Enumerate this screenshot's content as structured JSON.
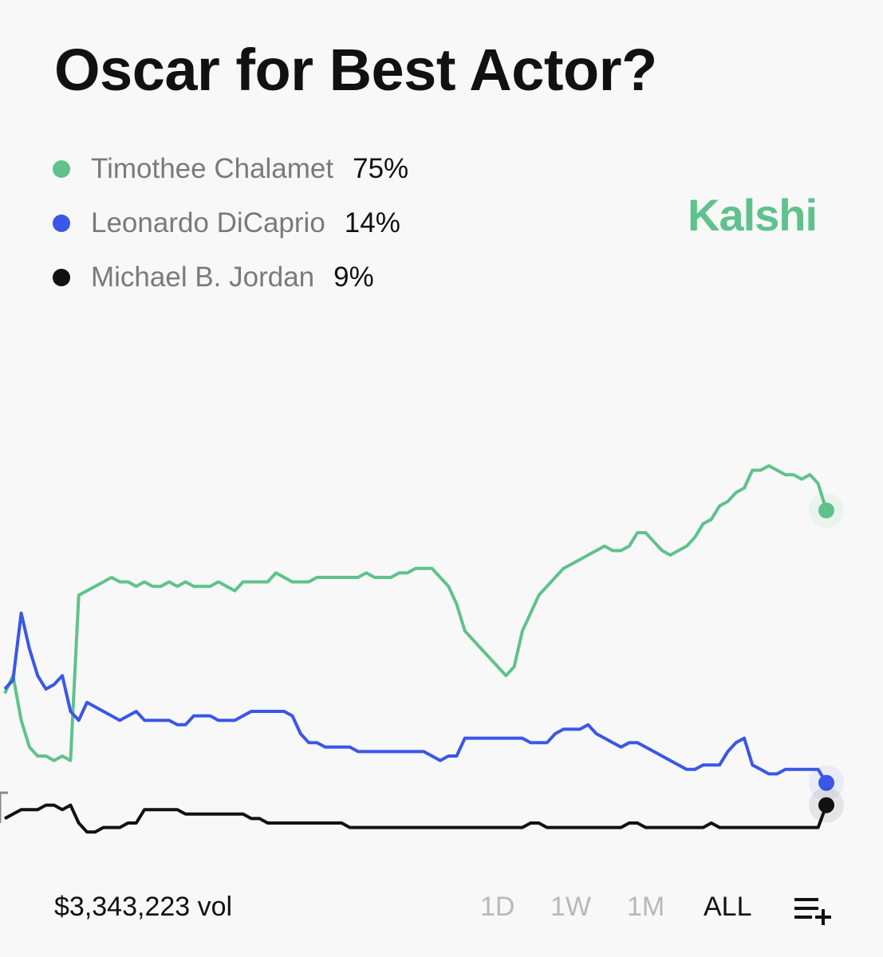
{
  "title": "Oscar for Best Actor?",
  "brand": {
    "name": "Kalshi",
    "color": "#5fc28c"
  },
  "legend": [
    {
      "name": "Timothee Chalamet",
      "pct": "75%",
      "color": "#5fc28c"
    },
    {
      "name": "Leonardo DiCaprio",
      "pct": "14%",
      "color": "#3a57e8"
    },
    {
      "name": "Michael B. Jordan",
      "pct": "9%",
      "color": "#111111"
    }
  ],
  "footer": {
    "volume": "$3,343,223 vol",
    "ranges": [
      "1D",
      "1W",
      "1M",
      "ALL"
    ],
    "active_range": "ALL",
    "filter_icon": "list-add-icon"
  },
  "chart_data": {
    "type": "line",
    "x": [
      0,
      1,
      2,
      3,
      4,
      5,
      6,
      7,
      8,
      9,
      10,
      11,
      12,
      13,
      14,
      15,
      16,
      17,
      18,
      19,
      20,
      21,
      22,
      23,
      24,
      25,
      26,
      27,
      28,
      29,
      30,
      31,
      32,
      33,
      34,
      35,
      36,
      37,
      38,
      39,
      40,
      41,
      42,
      43,
      44,
      45,
      46,
      47,
      48,
      49,
      50,
      51,
      52,
      53,
      54,
      55,
      56,
      57,
      58,
      59,
      60,
      61,
      62,
      63,
      64,
      65,
      66,
      67,
      68,
      69,
      70,
      71,
      72,
      73,
      74,
      75,
      76,
      77,
      78,
      79,
      80,
      81,
      82,
      83,
      84,
      85,
      86,
      87,
      88,
      89,
      90,
      91,
      92,
      93,
      94,
      95,
      96,
      97,
      98,
      99,
      100
    ],
    "ylim": [
      0,
      100
    ],
    "grid": false,
    "series": [
      {
        "name": "Timothee Chalamet",
        "color": "#5fc28c",
        "values": [
          34,
          38,
          28,
          22,
          20,
          20,
          19,
          20,
          19,
          56,
          57,
          58,
          59,
          60,
          59,
          59,
          58,
          59,
          58,
          58,
          59,
          58,
          59,
          58,
          58,
          58,
          59,
          58,
          57,
          59,
          59,
          59,
          59,
          61,
          60,
          59,
          59,
          59,
          60,
          60,
          60,
          60,
          60,
          60,
          61,
          60,
          60,
          60,
          61,
          61,
          62,
          62,
          62,
          60,
          58,
          54,
          48,
          46,
          44,
          42,
          40,
          38,
          40,
          48,
          52,
          56,
          58,
          60,
          62,
          63,
          64,
          65,
          66,
          67,
          66,
          66,
          67,
          70,
          70,
          68,
          66,
          65,
          66,
          67,
          69,
          72,
          73,
          76,
          77,
          79,
          80,
          84,
          84,
          85,
          84,
          83,
          83,
          82,
          83,
          81,
          75
        ]
      },
      {
        "name": "Leonardo DiCaprio",
        "color": "#3a57e8",
        "values": [
          35,
          37,
          52,
          44,
          38,
          35,
          36,
          38,
          30,
          28,
          32,
          31,
          30,
          29,
          28,
          29,
          30,
          28,
          28,
          28,
          28,
          27,
          27,
          29,
          29,
          29,
          28,
          28,
          28,
          29,
          30,
          30,
          30,
          30,
          30,
          29,
          25,
          23,
          23,
          22,
          22,
          22,
          22,
          21,
          21,
          21,
          21,
          21,
          21,
          21,
          21,
          21,
          20,
          19,
          20,
          20,
          24,
          24,
          24,
          24,
          24,
          24,
          24,
          24,
          23,
          23,
          23,
          25,
          26,
          26,
          26,
          27,
          25,
          24,
          23,
          22,
          23,
          23,
          22,
          21,
          20,
          19,
          18,
          17,
          17,
          18,
          18,
          18,
          21,
          23,
          24,
          18,
          17,
          16,
          16,
          17,
          17,
          17,
          17,
          17,
          14
        ]
      },
      {
        "name": "Michael B. Jordan",
        "color": "#111111",
        "values": [
          6,
          7,
          8,
          8,
          8,
          9,
          9,
          8,
          9,
          5,
          3,
          3,
          4,
          4,
          4,
          5,
          5,
          8,
          8,
          8,
          8,
          8,
          7,
          7,
          7,
          7,
          7,
          7,
          7,
          7,
          6,
          6,
          5,
          5,
          5,
          5,
          5,
          5,
          5,
          5,
          5,
          5,
          4,
          4,
          4,
          4,
          4,
          4,
          4,
          4,
          4,
          4,
          4,
          4,
          4,
          4,
          4,
          4,
          4,
          4,
          4,
          4,
          4,
          4,
          5,
          5,
          4,
          4,
          4,
          4,
          4,
          4,
          4,
          4,
          4,
          4,
          5,
          5,
          4,
          4,
          4,
          4,
          4,
          4,
          4,
          4,
          5,
          4,
          4,
          4,
          4,
          4,
          4,
          4,
          4,
          4,
          4,
          4,
          4,
          4,
          9
        ]
      }
    ]
  }
}
